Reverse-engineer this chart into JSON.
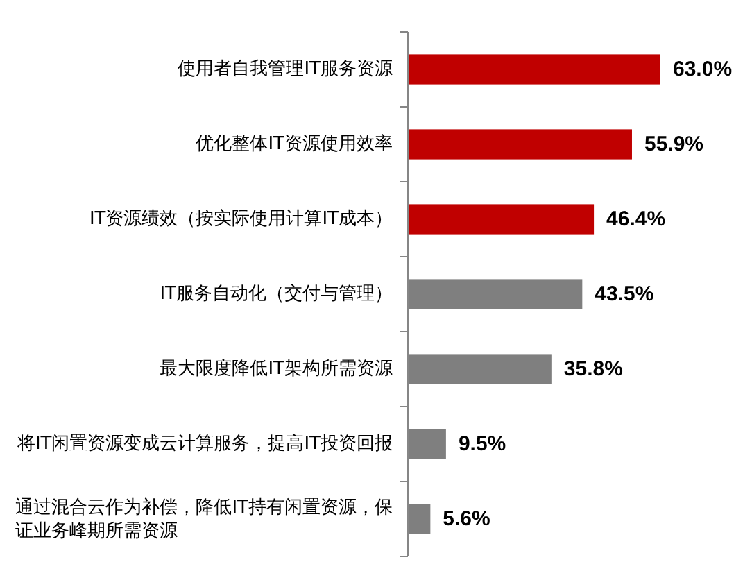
{
  "chart_data": {
    "type": "bar",
    "orientation": "horizontal",
    "categories": [
      "使用者自我管理IT服务资源",
      "优化整体IT资源使用效率",
      "IT资源绩效（按实际使用计算IT成本）",
      "IT服务自动化（交付与管理）",
      "最大限度降低IT架构所需资源",
      "将IT闲置资源变成云计算服务，提高IT投资回报",
      "通过混合云作为补偿，降低IT持有闲置资源，保证业务峰期所需资源"
    ],
    "values": [
      63.0,
      55.9,
      46.4,
      43.5,
      35.8,
      9.5,
      5.6
    ],
    "colors": [
      "#c00000",
      "#c00000",
      "#c00000",
      "#7f7f7f",
      "#7f7f7f",
      "#7f7f7f",
      "#7f7f7f"
    ],
    "value_labels": [
      "63.0%",
      "55.9%",
      "46.4%",
      "43.5%",
      "35.8%",
      "9.5%",
      "5.6%"
    ]
  }
}
